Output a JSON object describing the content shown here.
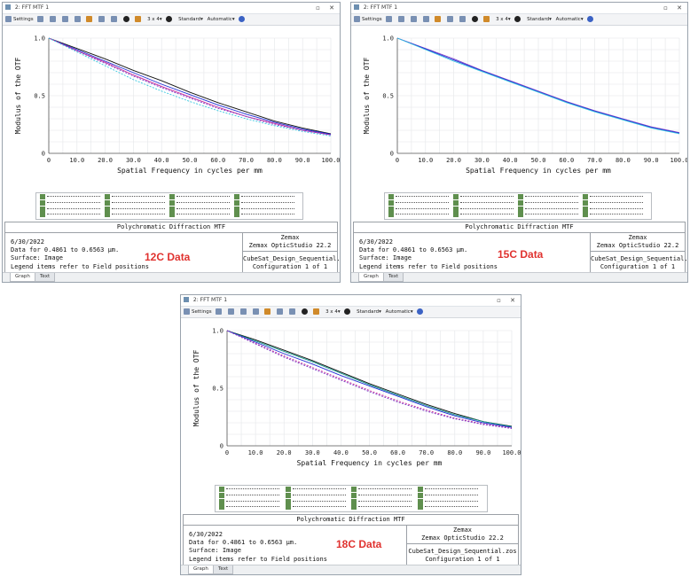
{
  "toolbar": {
    "settings_label": "Settings",
    "layout_label": "3 x 4",
    "standard_label": "Standard",
    "automatic_label": "Automatic",
    "dropdown_arrow": "▾"
  },
  "colors": {
    "black": "#111111",
    "blue": "#1f2fd6",
    "magenta": "#c8269a",
    "cyan": "#38c8e0",
    "teal": "#16988a",
    "purple": "#7a3fc8",
    "red": "#d9242c",
    "green": "#2aa84a"
  },
  "windows": [
    {
      "title": "2: FFT MTF 1",
      "info": {
        "title": "Polychromatic Diffraction MTF",
        "date": "6/30/2022",
        "data_line": "Data for 0.4861 to 0.6563 μm.",
        "surface": "Surface: Image",
        "legend_note": "Legend items refer to Field positions",
        "software_1": "Zemax",
        "software_2": "Zemax OpticStudio 22.2",
        "file": "CubeSat_Design_Sequential.zos",
        "config": "Configuration 1 of 1"
      },
      "tabs": [
        "Graph",
        "Text"
      ],
      "caption": "12C Data",
      "chart_data": {
        "type": "line",
        "ylabel": "Modulus of the OTF",
        "xlabel": "Spatial Frequency in cycles per mm",
        "xlim": [
          0,
          100
        ],
        "ylim": [
          0,
          1
        ],
        "x_ticks": [
          "0",
          "10.0",
          "20.0",
          "30.0",
          "40.0",
          "50.0",
          "60.0",
          "70.0",
          "80.0",
          "90.0",
          "100.0"
        ],
        "y_ticks": [
          "0",
          "0.5",
          "1.0"
        ],
        "grid": true,
        "x": [
          0,
          10,
          20,
          30,
          40,
          50,
          60,
          70,
          80,
          90,
          100
        ],
        "series": [
          {
            "color": "black",
            "dash": false,
            "values": [
              1.0,
              0.91,
              0.82,
              0.72,
              0.63,
              0.53,
              0.44,
              0.36,
              0.28,
              0.22,
              0.17
            ]
          },
          {
            "color": "blue",
            "dash": false,
            "values": [
              1.0,
              0.9,
              0.8,
              0.7,
              0.6,
              0.51,
              0.42,
              0.34,
              0.27,
              0.21,
              0.165
            ]
          },
          {
            "color": "magenta",
            "dash": false,
            "values": [
              1.0,
              0.89,
              0.79,
              0.68,
              0.58,
              0.49,
              0.4,
              0.32,
              0.26,
              0.2,
              0.16
            ]
          },
          {
            "color": "purple",
            "dash": true,
            "values": [
              1.0,
              0.89,
              0.78,
              0.67,
              0.57,
              0.48,
              0.39,
              0.32,
              0.25,
              0.2,
              0.16
            ]
          },
          {
            "color": "cyan",
            "dash": true,
            "values": [
              1.0,
              0.88,
              0.76,
              0.64,
              0.54,
              0.45,
              0.37,
              0.3,
              0.24,
              0.19,
              0.15
            ]
          }
        ],
        "legend_rows": 4,
        "legend_cols": 4
      }
    },
    {
      "title": "2: FFT MTF 1",
      "info": {
        "title": "Polychromatic Diffraction MTF",
        "date": "6/30/2022",
        "data_line": "Data for 0.4861 to 0.6563 μm.",
        "surface": "Surface: Image",
        "legend_note": "Legend items refer to Field positions",
        "software_1": "Zemax",
        "software_2": "Zemax OpticStudio 22.2",
        "file": "CubeSat_Design_Sequential.zos",
        "config": "Configuration 1 of 1"
      },
      "tabs": [
        "Graph",
        "Text"
      ],
      "caption": "15C Data",
      "chart_data": {
        "type": "line",
        "ylabel": "Modulus of the OTF",
        "xlabel": "Spatial Frequency in cycles per mm",
        "xlim": [
          0,
          100
        ],
        "ylim": [
          0,
          1
        ],
        "x_ticks": [
          "0",
          "10.0",
          "20.0",
          "30.0",
          "40.0",
          "50.0",
          "60.0",
          "70.0",
          "80.0",
          "90.0",
          "100.0"
        ],
        "y_ticks": [
          "0",
          "0.5",
          "1.0"
        ],
        "grid": true,
        "x": [
          0,
          10,
          20,
          30,
          40,
          50,
          60,
          70,
          80,
          90,
          100
        ],
        "series": [
          {
            "color": "purple",
            "dash": false,
            "values": [
              1.0,
              0.91,
              0.82,
              0.72,
              0.63,
              0.54,
              0.45,
              0.37,
              0.3,
              0.23,
              0.18
            ]
          },
          {
            "color": "blue",
            "dash": false,
            "values": [
              1.0,
              0.905,
              0.81,
              0.715,
              0.625,
              0.535,
              0.445,
              0.365,
              0.295,
              0.225,
              0.175
            ]
          },
          {
            "color": "cyan",
            "dash": false,
            "values": [
              1.0,
              0.9,
              0.8,
              0.71,
              0.62,
              0.53,
              0.44,
              0.36,
              0.29,
              0.22,
              0.17
            ]
          }
        ],
        "legend_rows": 4,
        "legend_cols": 4
      }
    },
    {
      "title": "2: FFT MTF 1",
      "info": {
        "title": "Polychromatic Diffraction MTF",
        "date": "6/30/2022",
        "data_line": "Data for 0.4861 to 0.6563 μm.",
        "surface": "Surface: Image",
        "legend_note": "Legend items refer to Field positions",
        "software_1": "Zemax",
        "software_2": "Zemax OpticStudio 22.2",
        "file": "CubeSat_Design_Sequential.zos",
        "config": "Configuration 1 of 1"
      },
      "tabs": [
        "Graph",
        "Text"
      ],
      "caption": "18C Data",
      "chart_data": {
        "type": "line",
        "ylabel": "Modulus of the OTF",
        "xlabel": "Spatial Frequency in cycles per mm",
        "xlim": [
          0,
          100
        ],
        "ylim": [
          0,
          1
        ],
        "x_ticks": [
          "0",
          "10.0",
          "20.0",
          "30.0",
          "40.0",
          "50.0",
          "60.0",
          "70.0",
          "80.0",
          "90.0",
          "100.0"
        ],
        "y_ticks": [
          "0",
          "0.5",
          "1.0"
        ],
        "grid": true,
        "x": [
          0,
          10,
          20,
          30,
          40,
          50,
          60,
          70,
          80,
          90,
          100
        ],
        "series": [
          {
            "color": "black",
            "dash": false,
            "values": [
              1.0,
              0.92,
              0.83,
              0.74,
              0.64,
              0.54,
              0.45,
              0.36,
              0.28,
              0.21,
              0.17
            ]
          },
          {
            "color": "teal",
            "dash": false,
            "values": [
              1.0,
              0.91,
              0.82,
              0.73,
              0.63,
              0.53,
              0.44,
              0.35,
              0.27,
              0.21,
              0.165
            ]
          },
          {
            "color": "blue",
            "dash": false,
            "values": [
              1.0,
              0.9,
              0.8,
              0.71,
              0.61,
              0.52,
              0.43,
              0.34,
              0.26,
              0.2,
              0.16
            ]
          },
          {
            "color": "magenta",
            "dash": true,
            "values": [
              1.0,
              0.89,
              0.78,
              0.68,
              0.58,
              0.48,
              0.39,
              0.31,
              0.24,
              0.19,
              0.155
            ]
          },
          {
            "color": "purple",
            "dash": true,
            "values": [
              1.0,
              0.885,
              0.77,
              0.67,
              0.57,
              0.47,
              0.38,
              0.3,
              0.235,
              0.185,
              0.15
            ]
          }
        ],
        "legend_rows": 4,
        "legend_cols": 4
      }
    }
  ]
}
